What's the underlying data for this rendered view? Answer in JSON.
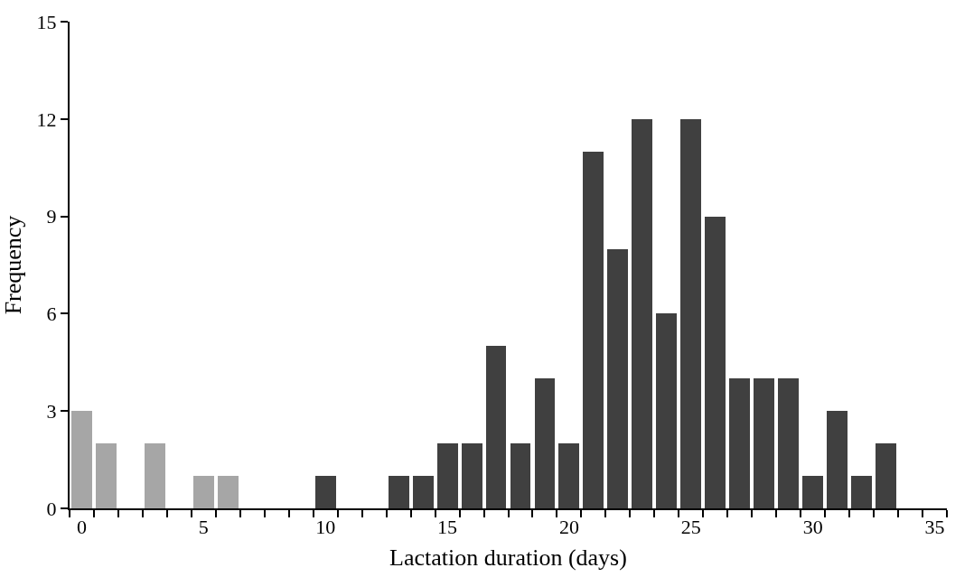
{
  "chart_data": {
    "type": "bar",
    "xlabel": "Lactation duration (days)",
    "ylabel": "Frequency",
    "categories": [
      "0",
      null,
      null,
      null,
      null,
      "5",
      null,
      null,
      null,
      null,
      "10",
      null,
      null,
      null,
      null,
      "15",
      null,
      null,
      null,
      null,
      "20",
      null,
      null,
      null,
      null,
      "25",
      null,
      null,
      null,
      null,
      "30",
      null,
      null,
      null,
      null,
      "35"
    ],
    "values": [
      3,
      2,
      null,
      2,
      null,
      1,
      1,
      null,
      null,
      null,
      1,
      null,
      null,
      1,
      1,
      2,
      2,
      5,
      2,
      4,
      2,
      11,
      8,
      12,
      6,
      12,
      9,
      4,
      4,
      4,
      1,
      3,
      1,
      2,
      null,
      null
    ],
    "colors": [
      "#a6a6a6",
      "#a6a6a6",
      "#a6a6a6",
      "#a6a6a6",
      "#a6a6a6",
      "#a6a6a6",
      "#a6a6a6",
      "#404040",
      "#404040",
      "#404040",
      "#404040",
      "#404040",
      "#404040",
      "#404040",
      "#404040",
      "#404040",
      "#404040",
      "#404040",
      "#404040",
      "#404040",
      "#404040",
      "#404040",
      "#404040",
      "#404040",
      "#404040",
      "#404040",
      "#404040",
      "#404040",
      "#404040",
      "#404040",
      "#404040",
      "#404040",
      "#404040",
      "#404040",
      "#404040",
      "#404040"
    ],
    "ylim": [
      0,
      15
    ],
    "yticks": [
      0,
      3,
      6,
      9,
      12,
      15
    ]
  }
}
